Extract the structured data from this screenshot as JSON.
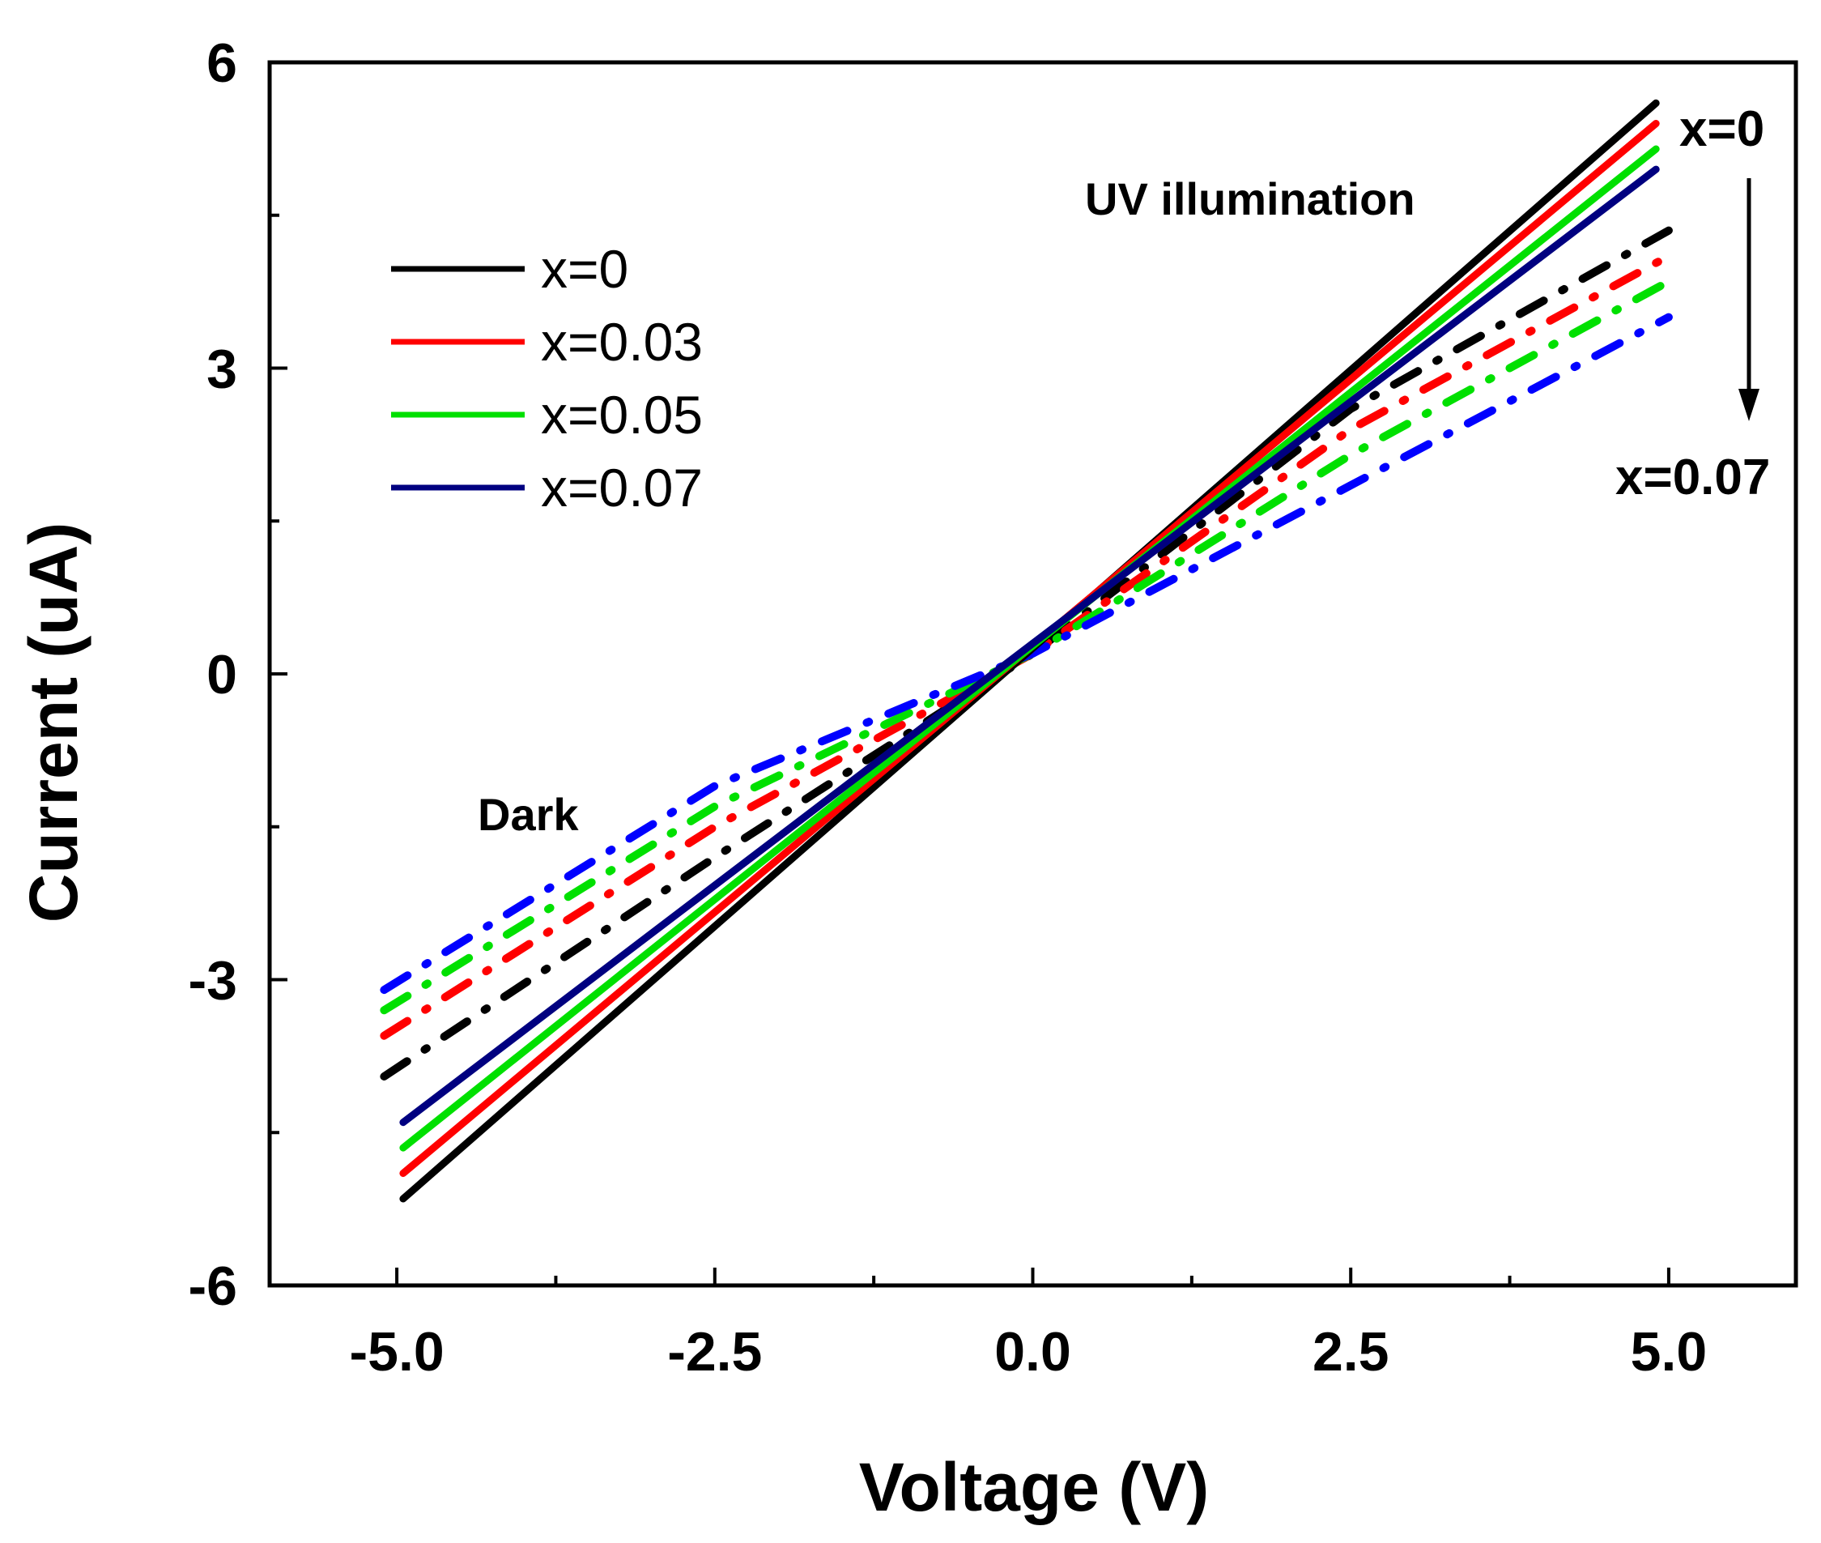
{
  "chart_data": {
    "type": "line",
    "xlabel": "Voltage (V)",
    "ylabel": "Current (uA)",
    "xlim": [
      -6.0,
      6.0
    ],
    "ylim": [
      -6,
      6
    ],
    "xticks": [
      -5.0,
      -2.5,
      0.0,
      2.5,
      5.0
    ],
    "xtick_labels": [
      "-5.0",
      "-2.5",
      "0.0",
      "2.5",
      "5.0"
    ],
    "xminor": [
      -3.75,
      -1.25,
      1.25,
      3.75
    ],
    "yticks": [
      -6,
      -3,
      0,
      3,
      6
    ],
    "ytick_labels": [
      "-6",
      "-3",
      "0",
      "3",
      "6"
    ],
    "yminor": [
      -4.5,
      -1.5,
      1.5,
      4.5
    ],
    "grid": false,
    "legend_position": "top-left",
    "series": [
      {
        "name": "x=0",
        "color": "#000000",
        "condition": "UV illumination",
        "style": "solid",
        "x": [
          -4.95,
          4.9
        ],
        "y": [
          -5.15,
          5.6
        ]
      },
      {
        "name": "x=0.03",
        "color": "#ff0000",
        "condition": "UV illumination",
        "style": "solid",
        "x": [
          -4.95,
          4.9
        ],
        "y": [
          -4.9,
          5.4
        ]
      },
      {
        "name": "x=0.05",
        "color": "#00e000",
        "condition": "UV illumination",
        "style": "solid",
        "x": [
          -4.95,
          4.9
        ],
        "y": [
          -4.65,
          5.15
        ]
      },
      {
        "name": "x=0.07",
        "color": "#000080",
        "condition": "UV illumination",
        "style": "solid",
        "x": [
          -4.95,
          4.9
        ],
        "y": [
          -4.4,
          4.95
        ]
      },
      {
        "name": "x=0",
        "color": "#000000",
        "condition": "Dark",
        "style": "dash-dot",
        "x": [
          -5.1,
          -2.5,
          0.0,
          2.5,
          5.0
        ],
        "y": [
          -3.95,
          -1.8,
          0.2,
          2.6,
          4.35
        ]
      },
      {
        "name": "x=0.03",
        "color": "#ff0000",
        "condition": "Dark",
        "style": "dash-dot",
        "x": [
          -5.1,
          -2.5,
          0.0,
          2.5,
          5.0
        ],
        "y": [
          -3.55,
          -1.5,
          0.2,
          2.4,
          4.1
        ]
      },
      {
        "name": "x=0.05",
        "color": "#00e000",
        "condition": "Dark",
        "style": "dash-dot",
        "x": [
          -5.1,
          -2.5,
          0.0,
          2.5,
          5.0
        ],
        "y": [
          -3.3,
          -1.3,
          0.2,
          2.15,
          3.85
        ]
      },
      {
        "name": "x=0.07",
        "color": "#0000ff",
        "condition": "Dark",
        "style": "dash-dot",
        "x": [
          -5.1,
          -2.5,
          0.0,
          2.5,
          5.0
        ],
        "y": [
          -3.1,
          -1.1,
          0.2,
          1.85,
          3.5
        ]
      }
    ],
    "legend": [
      {
        "label": "x=0",
        "color": "#000000"
      },
      {
        "label": "x=0.03",
        "color": "#ff0000"
      },
      {
        "label": "x=0.05",
        "color": "#00e000"
      },
      {
        "label": "x=0.07",
        "color": "#000080"
      }
    ],
    "annotations": {
      "uv": "UV illumination",
      "dark": "Dark",
      "arrow_top": "x=0",
      "arrow_bottom": "x=0.07"
    }
  }
}
